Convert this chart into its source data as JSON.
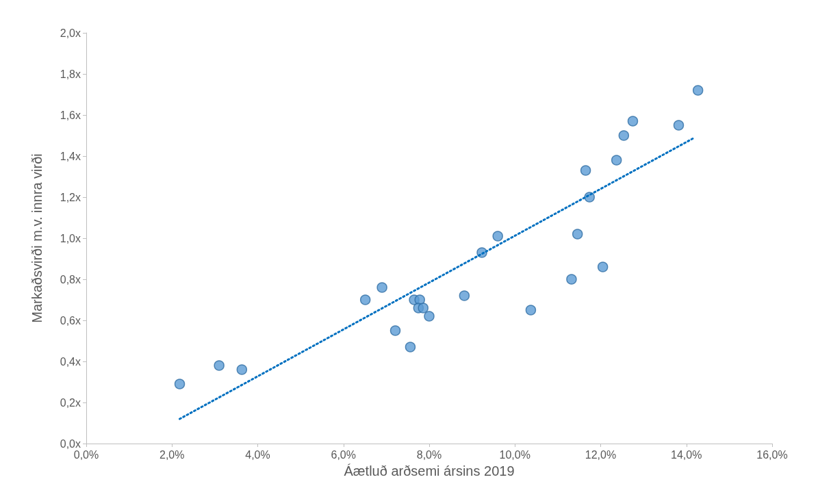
{
  "chart_data": {
    "type": "scatter",
    "xlabel": "Áætluð arðsemi ársins 2019",
    "ylabel": "Markaðsvirði m.v. innra virði",
    "series": [
      {
        "color": "#5b9bd5",
        "marker": "circle",
        "x": [
          2.18,
          3.1,
          3.63,
          6.51,
          6.9,
          7.21,
          7.56,
          7.65,
          7.78,
          7.75,
          7.86,
          8.0,
          8.82,
          9.23,
          9.6,
          10.37,
          11.32,
          11.46,
          11.65,
          11.74,
          12.37,
          12.05,
          12.54,
          12.75,
          13.82,
          14.27
        ],
        "values": [
          0.29,
          0.38,
          0.36,
          0.7,
          0.76,
          0.55,
          0.47,
          0.7,
          0.7,
          0.66,
          0.66,
          0.62,
          0.72,
          0.93,
          1.01,
          0.65,
          0.8,
          1.02,
          1.33,
          1.2,
          1.38,
          0.86,
          1.5,
          1.57,
          1.55,
          1.72
        ]
      },
      {
        "type": "line",
        "color": "#0070c0",
        "marker": "none",
        "line_style": "dotted",
        "x": [
          2.18,
          14.19
        ],
        "values": [
          0.12,
          1.49
        ]
      }
    ],
    "xlim": [
      0,
      16
    ],
    "xticks": [
      {
        "value": 0,
        "label": "0,0%"
      },
      {
        "value": 2,
        "label": "2,0%"
      },
      {
        "value": 4,
        "label": "4,0%"
      },
      {
        "value": 6,
        "label": "6,0%"
      },
      {
        "value": 8,
        "label": "8,0%"
      },
      {
        "value": 10,
        "label": "10,0%"
      },
      {
        "value": 12,
        "label": "12,0%"
      },
      {
        "value": 14,
        "label": "14,0%"
      },
      {
        "value": 16,
        "label": "16,0%"
      }
    ],
    "ylim": [
      0,
      2
    ],
    "yticks": [
      {
        "value": 0,
        "label": "0,0x"
      },
      {
        "value": 0.2,
        "label": "0,2x"
      },
      {
        "value": 0.4,
        "label": "0,4x"
      },
      {
        "value": 0.6,
        "label": "0,6x"
      },
      {
        "value": 0.8,
        "label": "0,8x"
      },
      {
        "value": 1,
        "label": "1,0x"
      },
      {
        "value": 1.2,
        "label": "1,2x"
      },
      {
        "value": 1.4,
        "label": "1,4x"
      },
      {
        "value": 1.6,
        "label": "1,6x"
      },
      {
        "value": 1.8,
        "label": "1,8x"
      },
      {
        "value": 2,
        "label": "2,0x"
      }
    ],
    "grid": false
  }
}
